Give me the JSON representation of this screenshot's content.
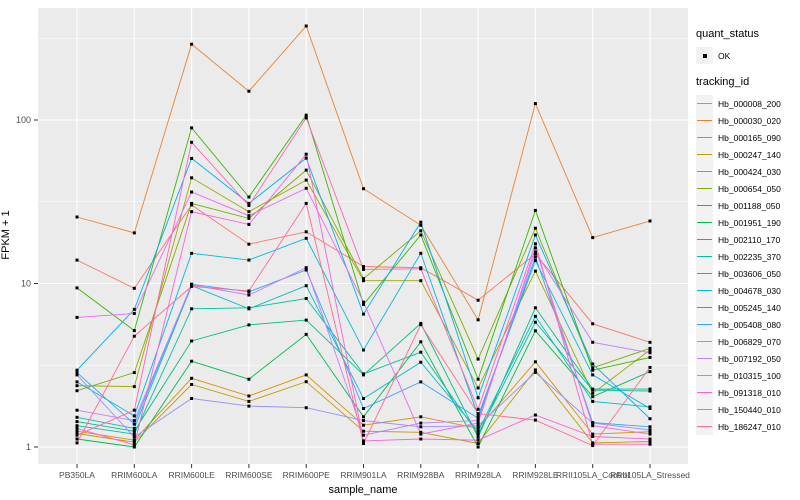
{
  "chart_data": {
    "type": "line",
    "title": "",
    "xlabel": "sample_name",
    "ylabel": "FPKM + 1",
    "y_scale": "log10",
    "ylim": [
      1,
      500
    ],
    "y_ticks": [
      1,
      10,
      100
    ],
    "y_minor_ticks": [
      3.1623,
      31.623,
      316.23
    ],
    "grid": true,
    "legend_position": "right",
    "point_shape": "filled-square",
    "point_color": "#000000",
    "panel_background": "#EBEBEB",
    "gridline_color": "#FFFFFF",
    "tick_label_color": "#4D4D4D",
    "categories": [
      "PB350LA",
      "RRIM600LA",
      "RRIM600LE",
      "RRIM600SE",
      "RRIM600PE",
      "RRIM901LA",
      "RRIM928BA",
      "RRIM928LA",
      "RRIM928LE",
      "RRII105LA_Control",
      "RRII105LA_Stressed"
    ],
    "series": [
      {
        "name": "Hb_000008_200",
        "color": "#F8766D",
        "values": [
          13.9,
          9.35,
          30.2,
          17.4,
          20.7,
          12.7,
          12.5,
          7.9,
          15.2,
          5.67,
          4.37
        ]
      },
      {
        "name": "Hb_000030_020",
        "color": "#EA8331",
        "values": [
          25.5,
          20.4,
          291,
          150,
          376,
          38.0,
          22.7,
          6.0,
          126,
          19.1,
          24.1
        ]
      },
      {
        "name": "Hb_000165_090",
        "color": "#D89000",
        "values": [
          1.25,
          1.1,
          2.63,
          2.05,
          2.76,
          1.36,
          1.53,
          1.3,
          3.32,
          1.2,
          1.24
        ]
      },
      {
        "name": "Hb_000247_140",
        "color": "#C09B00",
        "values": [
          1.21,
          1.07,
          2.41,
          1.9,
          2.51,
          1.25,
          1.23,
          1.05,
          2.96,
          1.06,
          1.08
        ]
      },
      {
        "name": "Hb_000424_030",
        "color": "#A3A500",
        "values": [
          2.37,
          2.34,
          44.3,
          27.5,
          42.9,
          10.4,
          10.4,
          2.3,
          11.9,
          2.13,
          3.92
        ]
      },
      {
        "name": "Hb_000654_050",
        "color": "#7CAE00",
        "values": [
          2.21,
          2.85,
          30.9,
          25.0,
          49.4,
          10.7,
          21.0,
          3.45,
          21.8,
          3.05,
          4.01
        ]
      },
      {
        "name": "Hb_001188_050",
        "color": "#39B600",
        "values": [
          9.4,
          5.15,
          89.5,
          33.8,
          107,
          7.45,
          19.8,
          2.6,
          28.0,
          2.95,
          3.53
        ]
      },
      {
        "name": "Hb_001951_190",
        "color": "#00BB4E",
        "values": [
          1.12,
          1.0,
          3.35,
          2.6,
          4.88,
          1.53,
          4.4,
          1.0,
          5.14,
          2.03,
          2.89
        ]
      },
      {
        "name": "Hb_002110_170",
        "color": "#00BF7D",
        "values": [
          1.43,
          1.25,
          4.45,
          5.58,
          5.97,
          2.76,
          5.7,
          1.15,
          7.1,
          2.26,
          2.26
        ]
      },
      {
        "name": "Hb_002235_370",
        "color": "#00C1A3",
        "values": [
          1.35,
          1.2,
          7.0,
          7.1,
          8.1,
          2.8,
          3.8,
          1.2,
          5.8,
          2.23,
          2.2
        ]
      },
      {
        "name": "Hb_003606_050",
        "color": "#00BFC4",
        "values": [
          1.52,
          1.3,
          9.7,
          7.0,
          9.7,
          1.98,
          3.3,
          1.25,
          6.3,
          1.9,
          1.76
        ]
      },
      {
        "name": "Hb_004678_030",
        "color": "#00BAE0",
        "values": [
          2.5,
          1.55,
          15.3,
          13.9,
          18.9,
          3.92,
          15.3,
          1.55,
          13.8,
          2.76,
          1.72
        ]
      },
      {
        "name": "Hb_005245_140",
        "color": "#00B0F6",
        "values": [
          2.95,
          6.94,
          58.2,
          30.9,
          58.5,
          6.5,
          23.7,
          2.0,
          19.8,
          3.22,
          1.49
        ]
      },
      {
        "name": "Hb_005408_080",
        "color": "#35A2FF",
        "values": [
          2.85,
          1.38,
          9.9,
          8.9,
          12.1,
          1.72,
          2.5,
          1.5,
          14.5,
          1.41,
          1.33
        ]
      },
      {
        "name": "Hb_006829_070",
        "color": "#9590FF",
        "values": [
          2.76,
          1.15,
          1.98,
          1.78,
          1.74,
          1.45,
          1.33,
          1.35,
          2.86,
          1.4,
          1.27
        ]
      },
      {
        "name": "Hb_007192_050",
        "color": "#C77CFF",
        "values": [
          1.68,
          1.45,
          9.8,
          8.5,
          12.5,
          1.18,
          1.4,
          1.45,
          15.6,
          4.37,
          3.77
        ]
      },
      {
        "name": "Hb_010315_100",
        "color": "#E76BF3",
        "values": [
          6.2,
          6.55,
          36.3,
          26.0,
          38.2,
          7.7,
          1.2,
          1.4,
          16.5,
          1.35,
          1.2
        ]
      },
      {
        "name": "Hb_091318_010",
        "color": "#FA62DB",
        "values": [
          1.3,
          1.03,
          27.5,
          23.0,
          61.8,
          1.09,
          1.12,
          1.1,
          1.57,
          1.16,
          1.12
        ]
      },
      {
        "name": "Hb_150440_010",
        "color": "#FF62BC",
        "values": [
          1.18,
          1.68,
          73.0,
          30.0,
          103,
          12.2,
          12.3,
          1.7,
          17.5,
          1.04,
          1.04
        ]
      },
      {
        "name": "Hb_186247_010",
        "color": "#FF6A98",
        "values": [
          1.06,
          4.76,
          9.6,
          9.0,
          30.9,
          1.05,
          5.6,
          1.6,
          1.46,
          1.02,
          3.07
        ]
      }
    ]
  },
  "axes": {
    "x_title": "sample_name",
    "y_title": "FPKM + 1",
    "y_tick_labels": [
      "1",
      "10",
      "100"
    ]
  },
  "legend": {
    "quant_status_title": "quant_status",
    "quant_status_value": "OK",
    "tracking_id_title": "tracking_id"
  }
}
